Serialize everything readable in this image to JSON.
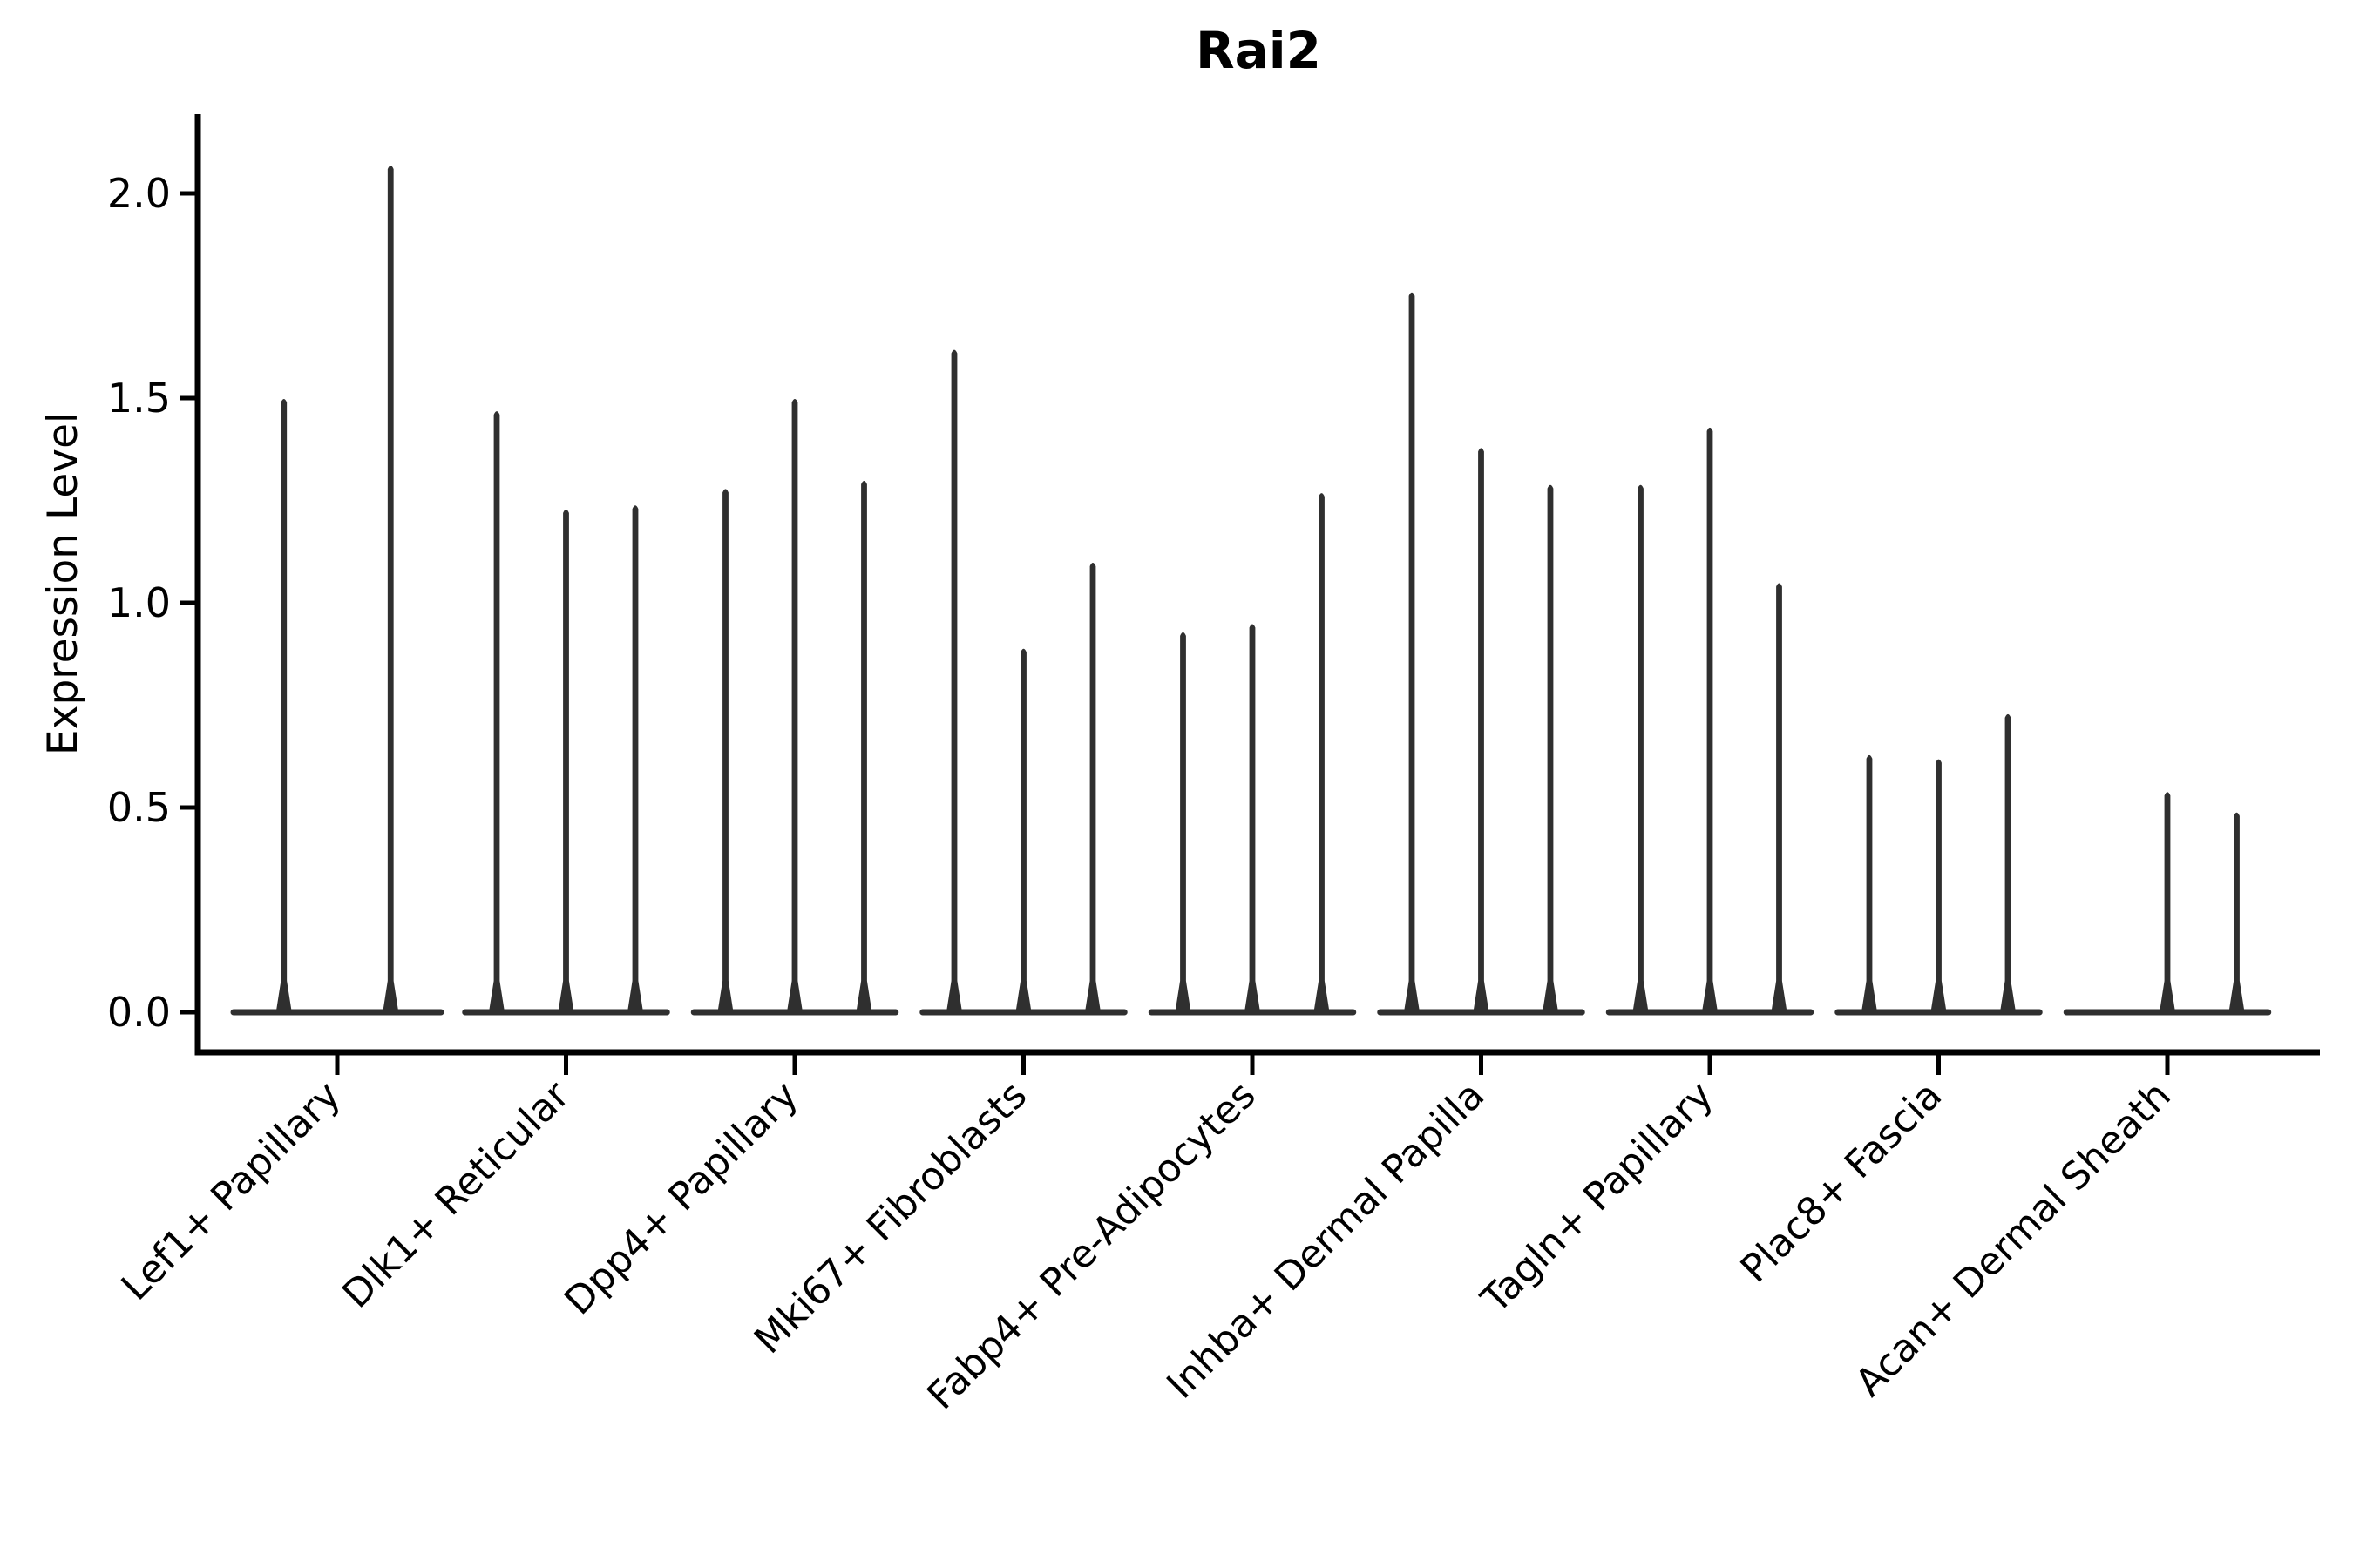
{
  "figure": {
    "title": "Rai2",
    "ylabel": "Expression Level"
  },
  "chart_data": {
    "type": "violin",
    "title": "Rai2",
    "xlabel": "",
    "ylabel": "Expression Level",
    "ylim": [
      0,
      2.19
    ],
    "yticks": [
      0.0,
      0.5,
      1.0,
      1.5,
      2.0
    ],
    "ytick_labels": [
      "0.0",
      "0.5",
      "1.0",
      "1.5",
      "2.0"
    ],
    "grid": false,
    "legend_position": "none",
    "baseline_value": 0.0,
    "violin_color": "#2f2f2f",
    "axis_color": "#000000",
    "categories": [
      "Lef1+ Papillary",
      "Dlk1+ Reticular",
      "Dpp4+ Papillary",
      "Mki67+ Fibroblasts",
      "Fabp4+ Pre-Adipocytes",
      "Inhba+ Dermal Papilla",
      "Tagln+ Papillary",
      "Plac8+ Fascia",
      "Acan+ Dermal Sheath"
    ],
    "groups": [
      {
        "category": "Lef1+ Papillary",
        "violin_peaks": [
          1.5,
          2.07
        ]
      },
      {
        "category": "Dlk1+ Reticular",
        "violin_peaks": [
          1.47,
          1.23,
          1.24
        ]
      },
      {
        "category": "Dpp4+ Papillary",
        "violin_peaks": [
          1.28,
          1.5,
          1.3
        ]
      },
      {
        "category": "Mki67+ Fibroblasts",
        "violin_peaks": [
          1.62,
          0.89,
          1.1
        ]
      },
      {
        "category": "Fabp4+ Pre-Adipocytes",
        "violin_peaks": [
          0.93,
          0.95,
          1.27
        ]
      },
      {
        "category": "Inhba+ Dermal Papilla",
        "violin_peaks": [
          1.76,
          1.38,
          1.29
        ]
      },
      {
        "category": "Tagln+ Papillary",
        "violin_peaks": [
          1.29,
          1.43,
          1.05
        ]
      },
      {
        "category": "Plac8+ Fascia",
        "violin_peaks": [
          0.63,
          0.62,
          0.73
        ]
      },
      {
        "category": "Acan+ Dermal Sheath",
        "violin_peaks": [
          0.0,
          0.54,
          0.49
        ]
      }
    ]
  }
}
